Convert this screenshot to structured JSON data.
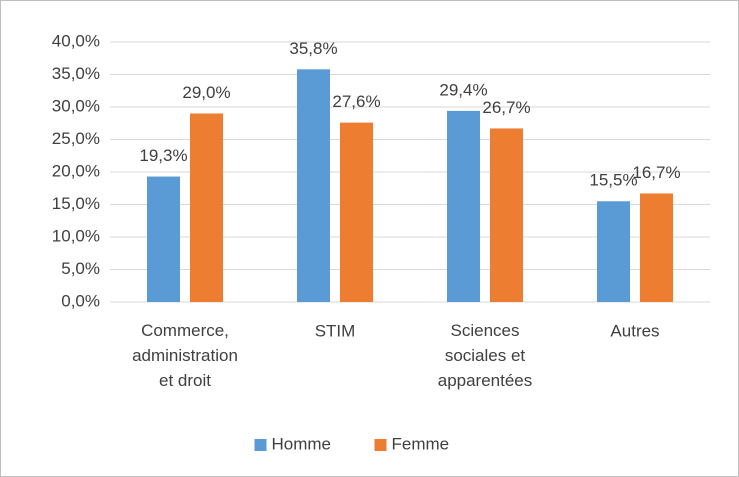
{
  "chart_data": {
    "type": "bar",
    "categories": [
      "Commerce,\nadministration\net droit",
      "STIM",
      "Sciences\nsociales et\napparentées",
      "Autres"
    ],
    "series": [
      {
        "name": "Homme",
        "color": "#5b9bd5",
        "values": [
          19.3,
          35.8,
          29.4,
          15.5
        ],
        "value_labels": [
          "19,3%",
          "35,8%",
          "29,4%",
          "15,5%"
        ]
      },
      {
        "name": "Femme",
        "color": "#ed7d31",
        "values": [
          29.0,
          27.6,
          26.7,
          16.7
        ],
        "value_labels": [
          "29,0%",
          "27,6%",
          "26,7%",
          "16,7%"
        ]
      }
    ],
    "ylim": [
      0,
      40
    ],
    "yticks": [
      {
        "value": 0,
        "label": "0,0%"
      },
      {
        "value": 5,
        "label": "5,0%"
      },
      {
        "value": 10,
        "label": "10,0%"
      },
      {
        "value": 15,
        "label": "15,0%"
      },
      {
        "value": 20,
        "label": "20,0%"
      },
      {
        "value": 25,
        "label": "25,0%"
      },
      {
        "value": 30,
        "label": "30,0%"
      },
      {
        "value": 35,
        "label": "35,0%"
      },
      {
        "value": 40,
        "label": "40,0%"
      }
    ],
    "grid": true,
    "legend": "bottom"
  }
}
